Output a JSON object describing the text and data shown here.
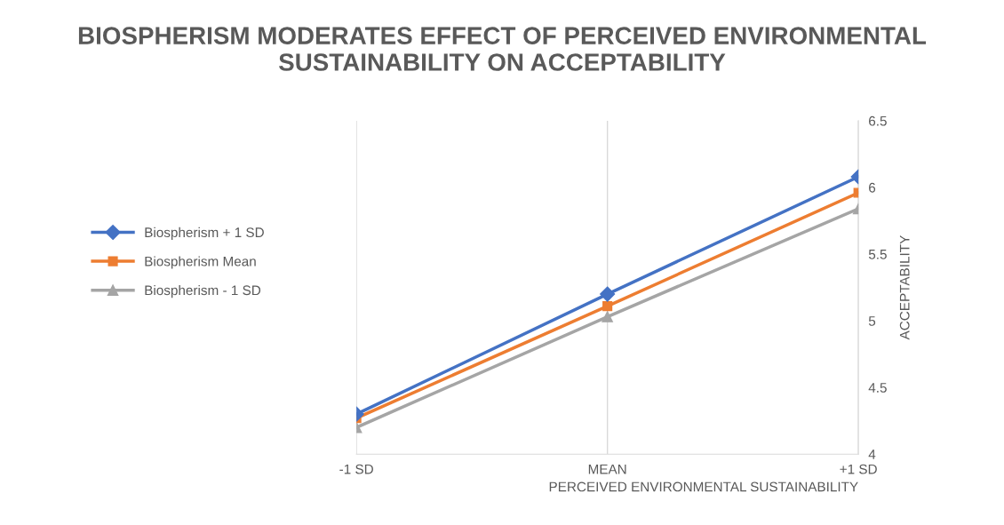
{
  "chart_data": {
    "type": "line",
    "title": "BIOSPHERISM MODERATES EFFECT OF PERCEIVED ENVIRONMENTAL SUSTAINABILITY ON ACCEPTABILITY",
    "xlabel": "PERCEIVED ENVIRONMENTAL SUSTAINABILITY",
    "ylabel": "ACCEPTABILITY",
    "categories": [
      "-1 SD",
      "MEAN",
      "+1 SD"
    ],
    "series": [
      {
        "name": "Biospherism + 1 SD",
        "color": "#4472c4",
        "marker": "diamond",
        "values": [
          4.3,
          5.2,
          6.08
        ]
      },
      {
        "name": "Biospherism Mean",
        "color": "#ed7d31",
        "marker": "square",
        "values": [
          4.27,
          5.11,
          5.96
        ]
      },
      {
        "name": "Biospherism - 1 SD",
        "color": "#a5a5a5",
        "marker": "triangle",
        "values": [
          4.2,
          5.03,
          5.84
        ]
      }
    ],
    "ylim": [
      4,
      6.5
    ],
    "yticks": [
      4,
      4.5,
      5,
      5.5,
      6,
      6.5
    ],
    "grid": "x",
    "legend": "left",
    "line_style": "solid"
  }
}
